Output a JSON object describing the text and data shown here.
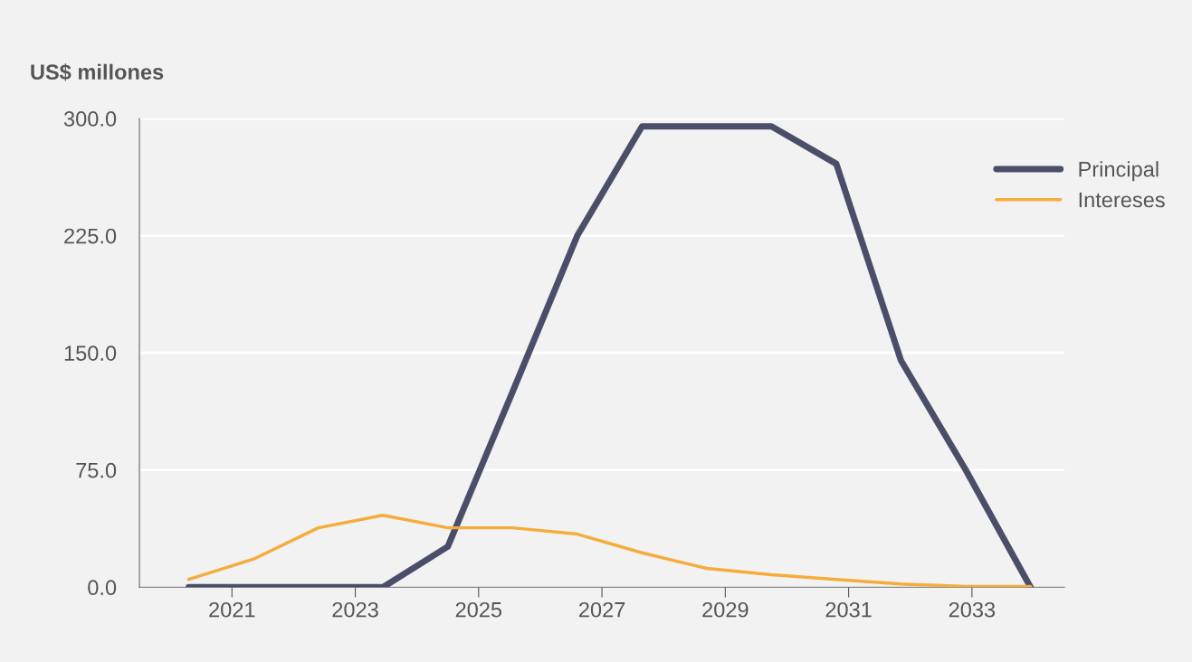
{
  "chart_data": {
    "type": "line",
    "ylabel": "US$ millones",
    "x": [
      2020.3,
      2021.35,
      2022.4,
      2023.45,
      2024.5,
      2025.55,
      2026.6,
      2027.65,
      2028.7,
      2029.75,
      2030.8,
      2031.85,
      2032.9,
      2033.95
    ],
    "series": [
      {
        "name": "Principal",
        "color": "#4a4e69",
        "values": [
          0,
          0,
          0,
          0,
          26,
          125,
          225,
          295,
          295,
          295,
          271,
          145,
          75,
          0
        ]
      },
      {
        "name": "Intereses",
        "color": "#f5ac3c",
        "values": [
          5,
          18,
          38,
          46,
          38,
          38,
          34,
          22,
          12,
          8,
          5,
          2,
          0.5,
          0.5
        ]
      }
    ],
    "xlim": [
      2019.5,
      2034.5
    ],
    "xticks": [
      2021,
      2023,
      2025,
      2027,
      2029,
      2031,
      2033
    ],
    "ylim": [
      0,
      300
    ],
    "yticks": [
      {
        "value": 0,
        "label": "0.0"
      },
      {
        "value": 75,
        "label": "75.0"
      },
      {
        "value": 150,
        "label": "150.0"
      },
      {
        "value": 225,
        "label": "225.0"
      },
      {
        "value": 300,
        "label": "300.0"
      }
    ],
    "grid": "y",
    "legend": "top right",
    "marker": "none",
    "line_style": "solid"
  }
}
